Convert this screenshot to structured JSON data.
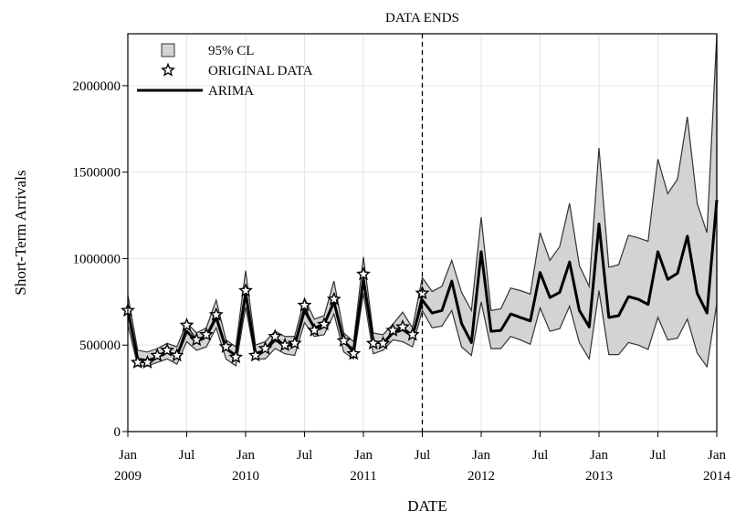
{
  "chart_data": {
    "type": "line",
    "y_label": "Short-Term Arrivals",
    "x_label": "DATE",
    "x": [
      "Jan 2009",
      "Feb 2009",
      "Mar 2009",
      "Apr 2009",
      "May 2009",
      "Jun 2009",
      "Jul 2009",
      "Aug 2009",
      "Sep 2009",
      "Oct 2009",
      "Nov 2009",
      "Dec 2009",
      "Jan 2010",
      "Feb 2010",
      "Mar 2010",
      "Apr 2010",
      "May 2010",
      "Jun 2010",
      "Jul 2010",
      "Aug 2010",
      "Sep 2010",
      "Oct 2010",
      "Nov 2010",
      "Dec 2010",
      "Jan 2011",
      "Feb 2011",
      "Mar 2011",
      "Apr 2011",
      "May 2011",
      "Jun 2011",
      "Jul 2011",
      "Aug 2011",
      "Sep 2011",
      "Oct 2011",
      "Nov 2011",
      "Dec 2011",
      "Jan 2012",
      "Feb 2012",
      "Mar 2012",
      "Apr 2012",
      "May 2012",
      "Jun 2012",
      "Jul 2012",
      "Aug 2012",
      "Sep 2012",
      "Oct 2012",
      "Nov 2012",
      "Dec 2012",
      "Jan 2013",
      "Feb 2013",
      "Mar 2013",
      "Apr 2013",
      "May 2013",
      "Jun 2013",
      "Jul 2013",
      "Aug 2013",
      "Sep 2013",
      "Oct 2013",
      "Nov 2013",
      "Dec 2013",
      "Jan 2014"
    ],
    "xlim": [
      "Jan 2009",
      "Jan 2014"
    ],
    "xticks": [
      {
        "value": "Jan 2009",
        "label": [
          "Jan",
          "2009"
        ]
      },
      {
        "value": "Jul 2009",
        "label": "Jul"
      },
      {
        "value": "Jan 2010",
        "label": [
          "Jan",
          "2010"
        ]
      },
      {
        "value": "Jul 2010",
        "label": "Jul"
      },
      {
        "value": "Jan 2011",
        "label": [
          "Jan",
          "2011"
        ]
      },
      {
        "value": "Jul 2011",
        "label": "Jul"
      },
      {
        "value": "Jan 2012",
        "label": [
          "Jan",
          "2012"
        ]
      },
      {
        "value": "Jul 2012",
        "label": "Jul"
      },
      {
        "value": "Jan 2013",
        "label": [
          "Jan",
          "2013"
        ]
      },
      {
        "value": "Jul 2013",
        "label": "Jul"
      },
      {
        "value": "Jan 2014",
        "label": [
          "Jan",
          "2014"
        ]
      }
    ],
    "ylim": [
      0,
      2300000
    ],
    "yticks": [
      0,
      500000,
      1000000,
      1500000,
      2000000
    ],
    "grid": true,
    "legend": "upper left",
    "annotations": [
      {
        "text": "DATA ENDS",
        "x": "Jul 2011"
      }
    ],
    "series": [
      {
        "name": "95% CL",
        "color": "#d3d3d3",
        "upper": [
          790000,
          470000,
          460000,
          480000,
          510000,
          490000,
          630000,
          570000,
          600000,
          760000,
          530000,
          490000,
          930000,
          500000,
          520000,
          580000,
          550000,
          550000,
          770000,
          650000,
          670000,
          870000,
          570000,
          520000,
          1010000,
          570000,
          560000,
          620000,
          690000,
          600000,
          890000,
          810000,
          840000,
          990000,
          805000,
          700000,
          1240000,
          700000,
          710000,
          830000,
          815000,
          795000,
          1150000,
          990000,
          1070000,
          1320000,
          960000,
          840000,
          1640000,
          950000,
          965000,
          1135000,
          1120000,
          1100000,
          1575000,
          1375000,
          1460000,
          1820000,
          1320000,
          1150000,
          2295000
        ],
        "lower": [
          620000,
          380000,
          380000,
          400000,
          420000,
          390000,
          520000,
          470000,
          490000,
          600000,
          420000,
          380000,
          720000,
          420000,
          420000,
          480000,
          450000,
          440000,
          630000,
          550000,
          560000,
          680000,
          460000,
          420000,
          800000,
          450000,
          470000,
          530000,
          520000,
          490000,
          700000,
          600000,
          610000,
          700000,
          490000,
          440000,
          750000,
          480000,
          480000,
          550000,
          530000,
          505000,
          715000,
          580000,
          595000,
          725000,
          515000,
          420000,
          815000,
          445000,
          445000,
          515000,
          500000,
          475000,
          660000,
          530000,
          540000,
          650000,
          455000,
          375000,
          740000
        ]
      },
      {
        "name": "ORIGINAL DATA",
        "color": "#000000",
        "values": [
          700000,
          400000,
          400000,
          440000,
          470000,
          440000,
          615000,
          530000,
          560000,
          675000,
          490000,
          430000,
          815000,
          440000,
          480000,
          550000,
          500000,
          510000,
          730000,
          585000,
          620000,
          765000,
          525000,
          450000,
          910000,
          510000,
          510000,
          585000,
          605000,
          560000,
          800000,
          null,
          null,
          null,
          null,
          null,
          null,
          null,
          null,
          null,
          null,
          null,
          null,
          null,
          null,
          null,
          null,
          null,
          null,
          null,
          null,
          null,
          null,
          null,
          null,
          null,
          null,
          null,
          null,
          null,
          null
        ]
      },
      {
        "name": "ARIMA",
        "color": "#000000",
        "values": [
          700000,
          420000,
          410000,
          430000,
          460000,
          440000,
          580000,
          520000,
          550000,
          660000,
          480000,
          440000,
          800000,
          450000,
          470000,
          530000,
          500000,
          500000,
          700000,
          600000,
          620000,
          750000,
          520000,
          470000,
          880000,
          520000,
          510000,
          570000,
          590000,
          550000,
          760000,
          685000,
          700000,
          870000,
          625000,
          515000,
          1040000,
          580000,
          585000,
          680000,
          660000,
          640000,
          920000,
          775000,
          805000,
          980000,
          700000,
          605000,
          1200000,
          660000,
          670000,
          780000,
          765000,
          735000,
          1040000,
          880000,
          915000,
          1130000,
          800000,
          685000,
          1340000
        ]
      }
    ]
  }
}
